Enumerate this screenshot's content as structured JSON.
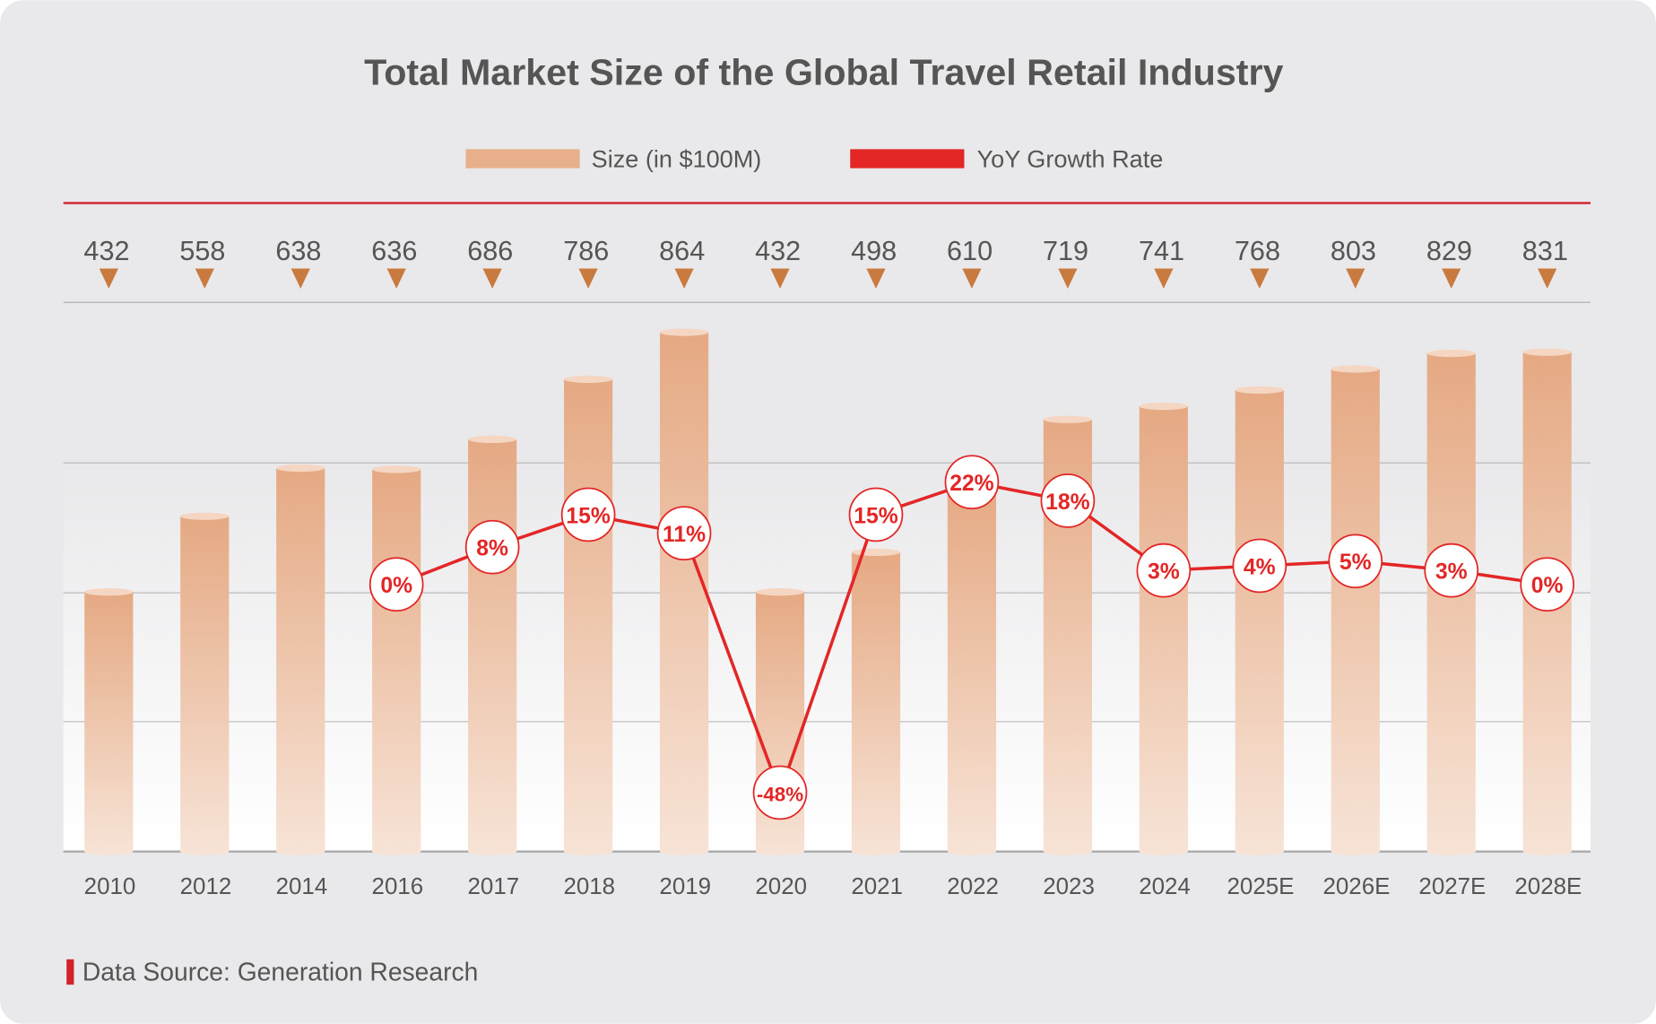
{
  "chart_data": {
    "type": "bar+line",
    "title": "Total Market Size of the Global Travel Retail Industry",
    "legend": {
      "placement": "top-center",
      "entries": [
        {
          "label": "Size (in $100M)",
          "color": "#e8b08a",
          "kind": "bar"
        },
        {
          "label": "YoY Growth Rate",
          "color": "#e32626",
          "kind": "line"
        }
      ]
    },
    "categories": [
      "2010",
      "2012",
      "2014",
      "2016",
      "2017",
      "2018",
      "2019",
      "2020",
      "2021",
      "2022",
      "2023",
      "2024",
      "2025E",
      "2026E",
      "2027E",
      "2028E"
    ],
    "series": [
      {
        "name": "Size (in $100M)",
        "type": "bar",
        "values": [
          432,
          558,
          638,
          636,
          686,
          786,
          864,
          432,
          498,
          610,
          719,
          741,
          768,
          803,
          829,
          831
        ]
      },
      {
        "name": "YoY Growth Rate",
        "type": "line",
        "unit": "%",
        "values": [
          null,
          null,
          null,
          0,
          8,
          15,
          11,
          -48,
          15,
          22,
          18,
          3,
          4,
          5,
          3,
          0
        ],
        "labels": [
          null,
          null,
          null,
          "0%",
          "8%",
          "15%",
          "11%",
          "-48%",
          "15%",
          "22%",
          "18%",
          "3%",
          "4%",
          "5%",
          "3%",
          "0%"
        ]
      }
    ],
    "grid": true,
    "source": "Data Source: Generation Research"
  },
  "colors": {
    "background": "#e9e9eb",
    "bar": "#e6ab85",
    "line": "#e32626",
    "title": "#555555",
    "marker": "#c97a3f"
  }
}
